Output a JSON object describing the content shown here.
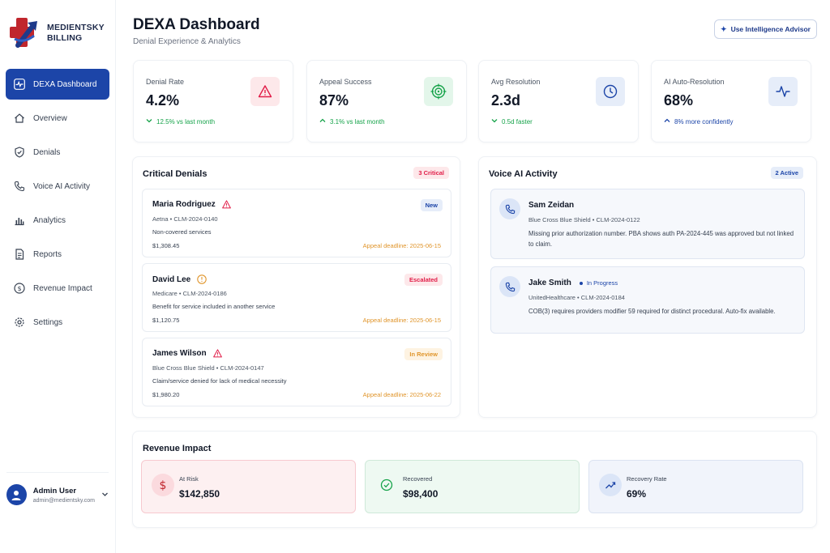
{
  "brand": {
    "line1": "MEDIENTSKY",
    "line2": "BILLING"
  },
  "sidebar": {
    "items": [
      {
        "label": "DEXA Dashboard",
        "icon": "activity-icon",
        "active": true
      },
      {
        "label": "Overview",
        "icon": "home-icon"
      },
      {
        "label": "Denials",
        "icon": "shield-icon"
      },
      {
        "label": "Voice AI Activity",
        "icon": "phone-icon"
      },
      {
        "label": "Analytics",
        "icon": "bar-chart-icon"
      },
      {
        "label": "Reports",
        "icon": "document-icon"
      },
      {
        "label": "Revenue Impact",
        "icon": "dollar-circle-icon"
      },
      {
        "label": "Settings",
        "icon": "gear-icon"
      }
    ]
  },
  "user": {
    "name": "Admin User",
    "email": "admin@medientsky.com"
  },
  "header": {
    "title": "DEXA Dashboard",
    "subtitle": "Denial Experience & Analytics",
    "advisor_label": "Use Intelligence Advisor"
  },
  "stats": [
    {
      "label": "Denial Rate",
      "value": "4.2%",
      "trend": "12.5% vs last month",
      "trend_dir": "down",
      "icon": "alert-triangle-icon",
      "color": "#e11d48"
    },
    {
      "label": "Appeal Success",
      "value": "87%",
      "trend": "3.1% vs last month",
      "trend_dir": "up",
      "icon": "target-icon",
      "color": "#16a34a"
    },
    {
      "label": "Avg Resolution",
      "value": "2.3d",
      "trend": "0.5d faster",
      "trend_dir": "down",
      "icon": "clock-icon",
      "color": "#1c45a8"
    },
    {
      "label": "AI Auto-Resolution",
      "value": "68%",
      "trend": "8% more confidently",
      "trend_dir": "up",
      "icon": "pulse-icon",
      "color": "#1c45a8"
    }
  ],
  "critical_denials": {
    "title": "Critical Denials",
    "count_badge": "3 Critical",
    "items": [
      {
        "name": "Maria Rodriguez",
        "meta": "Aetna • CLM-2024-0140",
        "reason": "Non-covered services",
        "amount": "$1,308.45",
        "deadline": "Appeal deadline: 2025-06-15",
        "status": "New",
        "warn": "red"
      },
      {
        "name": "David Lee",
        "meta": "Medicare • CLM-2024-0186",
        "reason": "Benefit for service included in another service",
        "amount": "$1,120.75",
        "deadline": "Appeal deadline: 2025-06-15",
        "status": "Escalated",
        "warn": "orange"
      },
      {
        "name": "James Wilson",
        "meta": "Blue Cross Blue Shield • CLM-2024-0147",
        "reason": "Claim/service denied for lack of medical necessity",
        "amount": "$1,980.20",
        "deadline": "Appeal deadline: 2025-06-22",
        "status": "In Review",
        "warn": "red"
      }
    ]
  },
  "voice_ai": {
    "title": "Voice AI Activity",
    "count_badge": "2 Active",
    "items": [
      {
        "name": "Sam Zeidan",
        "status": "",
        "meta": "Blue Cross Blue Shield • CLM-2024-0122",
        "note": "Missing prior authorization number. PBA shows auth PA-2024-445 was approved but not linked to claim."
      },
      {
        "name": "Jake Smith",
        "status": "In Progress",
        "meta": "UnitedHealthcare • CLM-2024-0184",
        "note": "COB(3) requires providers modifier 59 required for distinct procedural. Auto-fix available."
      }
    ]
  },
  "revenue": {
    "title": "Revenue Impact",
    "cards": [
      {
        "label": "At Risk",
        "value": "$142,850",
        "icon": "dollar-icon"
      },
      {
        "label": "Recovered",
        "value": "$98,400",
        "icon": "check-circle-icon"
      },
      {
        "label": "Recovery Rate",
        "value": "69%",
        "icon": "trending-up-icon"
      }
    ]
  }
}
